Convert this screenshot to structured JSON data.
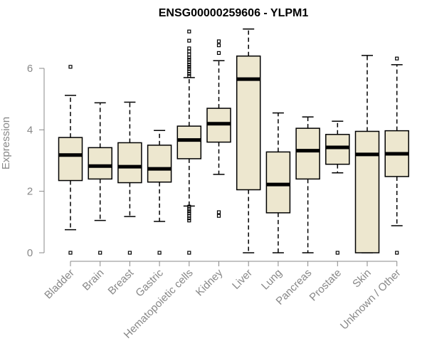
{
  "chart_data": {
    "type": "boxplot",
    "title": "ENSG00000259606 - YLPM1",
    "xlabel": "",
    "ylabel": "Expression",
    "ylim": [
      0,
      7.2
    ],
    "yticks": [
      "0",
      "2",
      "4",
      "6"
    ],
    "box_color": "#ede7cf",
    "categories": [
      "Bladder",
      "Brain",
      "Breast",
      "Gastric",
      "Hematopoietic cells",
      "Kidney",
      "Liver",
      "Lung",
      "Pancreas",
      "Prostate",
      "Skin",
      "Unknown / Other"
    ],
    "boxes": [
      {
        "name": "Bladder",
        "whisker_low": 0.75,
        "q1": 2.35,
        "median": 3.18,
        "q3": 3.75,
        "whisker_high": 5.12,
        "outliers": [
          0,
          6.05
        ]
      },
      {
        "name": "Brain",
        "whisker_low": 1.05,
        "q1": 2.4,
        "median": 2.82,
        "q3": 3.42,
        "whisker_high": 4.88,
        "outliers": [
          0
        ]
      },
      {
        "name": "Breast",
        "whisker_low": 1.18,
        "q1": 2.28,
        "median": 2.8,
        "q3": 3.58,
        "whisker_high": 4.9,
        "outliers": [
          0
        ]
      },
      {
        "name": "Gastric",
        "whisker_low": 1.02,
        "q1": 2.3,
        "median": 2.73,
        "q3": 3.5,
        "whisker_high": 3.98,
        "outliers": [
          0
        ]
      },
      {
        "name": "Hematopoietic cells",
        "whisker_low": 1.52,
        "q1": 3.06,
        "median": 3.67,
        "q3": 4.12,
        "whisker_high": 5.7,
        "outliers": [
          0,
          1.05,
          1.12,
          1.2,
          1.28,
          1.35,
          1.42,
          1.5,
          5.75,
          5.82,
          5.9,
          5.98,
          6.05,
          6.12,
          6.2,
          6.28,
          6.35,
          6.45,
          6.55,
          6.65,
          6.9,
          7.2
        ]
      },
      {
        "name": "Kidney",
        "whisker_low": 2.55,
        "q1": 3.6,
        "median": 4.2,
        "q3": 4.7,
        "whisker_high": 6.25,
        "outliers": [
          1.2,
          1.32,
          6.5,
          6.75,
          6.88
        ]
      },
      {
        "name": "Liver",
        "whisker_low": 0,
        "q1": 2.05,
        "median": 5.65,
        "q3": 6.4,
        "whisker_high": 7.28,
        "outliers": []
      },
      {
        "name": "Lung",
        "whisker_low": 0,
        "q1": 1.3,
        "median": 2.22,
        "q3": 3.28,
        "whisker_high": 4.55,
        "outliers": []
      },
      {
        "name": "Pancreas",
        "whisker_low": 0,
        "q1": 2.4,
        "median": 3.32,
        "q3": 4.05,
        "whisker_high": 4.42,
        "outliers": []
      },
      {
        "name": "Prostate",
        "whisker_low": 2.6,
        "q1": 2.88,
        "median": 3.43,
        "q3": 3.85,
        "whisker_high": 4.28,
        "outliers": [
          0
        ]
      },
      {
        "name": "Skin",
        "whisker_low": 0,
        "q1": 0,
        "median": 3.2,
        "q3": 3.95,
        "whisker_high": 6.42,
        "outliers": []
      },
      {
        "name": "Unknown / Other",
        "whisker_low": 0.88,
        "q1": 2.48,
        "median": 3.22,
        "q3": 3.97,
        "whisker_high": 6.12,
        "outliers": [
          0,
          6.32
        ]
      }
    ]
  }
}
